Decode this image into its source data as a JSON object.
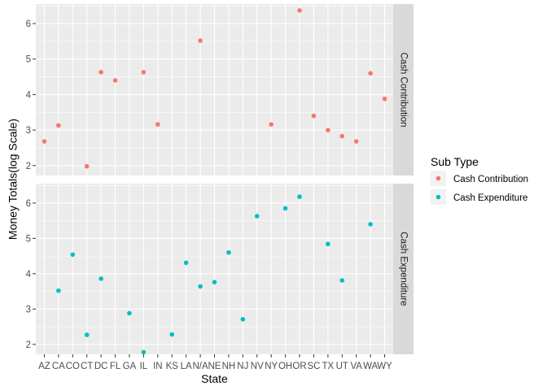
{
  "chart_data": {
    "type": "scatter",
    "xlabel": "State",
    "ylabel": "Money Totals(log Scale)",
    "categories": [
      "AZ",
      "CA",
      "CO",
      "CT",
      "DC",
      "FL",
      "GA",
      "IL",
      "IN",
      "KS",
      "LA",
      "N/A",
      "NE",
      "NH",
      "NJ",
      "NV",
      "NY",
      "OH",
      "OR",
      "SC",
      "TX",
      "UT",
      "VA",
      "WA",
      "WY"
    ],
    "ylim": [
      1.72,
      6.55
    ],
    "y_ticks": [
      2,
      3,
      4,
      5,
      6
    ],
    "grid": true,
    "legend": {
      "title": "Sub Type",
      "position": "right",
      "entries": [
        {
          "label": "Cash Contribution",
          "color": "#F8766D"
        },
        {
          "label": "Cash Expenditure",
          "color": "#00BFC4"
        }
      ]
    },
    "facets": [
      {
        "label": "Cash Contribution",
        "color": "#F8766D",
        "points": [
          {
            "x": "AZ",
            "y": 2.68
          },
          {
            "x": "CA",
            "y": 3.13
          },
          {
            "x": "CT",
            "y": 1.98
          },
          {
            "x": "DC",
            "y": 4.63
          },
          {
            "x": "FL",
            "y": 4.4
          },
          {
            "x": "IL",
            "y": 4.63
          },
          {
            "x": "IN",
            "y": 3.16
          },
          {
            "x": "N/A",
            "y": 5.52
          },
          {
            "x": "NY",
            "y": 3.16
          },
          {
            "x": "OR",
            "y": 6.37
          },
          {
            "x": "SC",
            "y": 3.4
          },
          {
            "x": "TX",
            "y": 3.0
          },
          {
            "x": "UT",
            "y": 2.83
          },
          {
            "x": "VA",
            "y": 2.68
          },
          {
            "x": "WA",
            "y": 4.6
          },
          {
            "x": "WY",
            "y": 3.88
          }
        ]
      },
      {
        "label": "Cash Expenditure",
        "color": "#00BFC4",
        "points": [
          {
            "x": "CA",
            "y": 3.52
          },
          {
            "x": "CO",
            "y": 4.54
          },
          {
            "x": "CT",
            "y": 2.27
          },
          {
            "x": "DC",
            "y": 3.86
          },
          {
            "x": "GA",
            "y": 2.88
          },
          {
            "x": "IL",
            "y": 1.78
          },
          {
            "x": "KS",
            "y": 2.28
          },
          {
            "x": "LA",
            "y": 4.31
          },
          {
            "x": "N/A",
            "y": 3.64
          },
          {
            "x": "NE",
            "y": 3.76
          },
          {
            "x": "NH",
            "y": 4.6
          },
          {
            "x": "NJ",
            "y": 2.71
          },
          {
            "x": "NV",
            "y": 5.63
          },
          {
            "x": "OH",
            "y": 5.85
          },
          {
            "x": "OR",
            "y": 6.18
          },
          {
            "x": "TX",
            "y": 4.84
          },
          {
            "x": "UT",
            "y": 3.81
          },
          {
            "x": "WA",
            "y": 5.4
          }
        ]
      }
    ]
  }
}
